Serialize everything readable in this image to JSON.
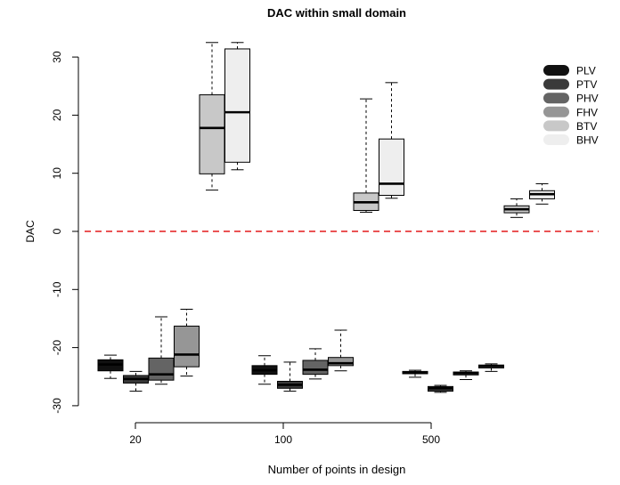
{
  "chart_data": {
    "type": "box",
    "title": "DAC within small domain",
    "xlabel": "Number of points in design",
    "ylabel": "DAC",
    "ylim": [
      -31,
      33
    ],
    "yticks": [
      -30,
      -20,
      -10,
      0,
      10,
      20,
      30
    ],
    "categories": [
      "20",
      "100",
      "500"
    ],
    "reference_line": {
      "y": 0,
      "style": "dashed",
      "color": "#e41a1c"
    },
    "legend": {
      "position": "top-right"
    },
    "series": [
      {
        "name": "PLV",
        "color": "#111111",
        "boxes": [
          {
            "category": "20",
            "whisker_low": -25.3,
            "q1": -24.0,
            "median": -22.9,
            "q3": -22.1,
            "whisker_high": -21.3
          },
          {
            "category": "100",
            "whisker_low": -26.3,
            "q1": -24.6,
            "median": -23.9,
            "q3": -23.1,
            "whisker_high": -21.4
          },
          {
            "category": "500",
            "whisker_low": -25.1,
            "q1": -24.5,
            "median": -24.3,
            "q3": -24.1,
            "whisker_high": -23.9
          }
        ]
      },
      {
        "name": "PTV",
        "color": "#3a3a3a",
        "boxes": [
          {
            "category": "20",
            "whisker_low": -27.5,
            "q1": -26.1,
            "median": -25.4,
            "q3": -24.8,
            "whisker_high": -24.1
          },
          {
            "category": "100",
            "whisker_low": -27.5,
            "q1": -27.0,
            "median": -26.4,
            "q3": -25.8,
            "whisker_high": -22.5
          },
          {
            "category": "500",
            "whisker_low": -27.7,
            "q1": -27.5,
            "median": -27.0,
            "q3": -26.7,
            "whisker_high": -26.5
          }
        ]
      },
      {
        "name": "PHV",
        "color": "#646464",
        "boxes": [
          {
            "category": "20",
            "whisker_low": -26.3,
            "q1": -25.6,
            "median": -24.6,
            "q3": -21.8,
            "whisker_high": -14.7
          },
          {
            "category": "100",
            "whisker_low": -25.4,
            "q1": -24.6,
            "median": -23.8,
            "q3": -22.2,
            "whisker_high": -20.2
          },
          {
            "category": "500",
            "whisker_low": -25.5,
            "q1": -24.7,
            "median": -24.4,
            "q3": -24.2,
            "whisker_high": -24.0
          }
        ]
      },
      {
        "name": "FHV",
        "color": "#969696",
        "boxes": [
          {
            "category": "20",
            "whisker_low": -24.9,
            "q1": -23.3,
            "median": -21.2,
            "q3": -16.3,
            "whisker_high": -13.4
          },
          {
            "category": "100",
            "whisker_low": -24.0,
            "q1": -23.1,
            "median": -22.7,
            "q3": -21.7,
            "whisker_high": -17.0
          },
          {
            "category": "500",
            "whisker_low": -24.1,
            "q1": -23.5,
            "median": -23.2,
            "q3": -23.0,
            "whisker_high": -22.8
          }
        ]
      },
      {
        "name": "BTV",
        "color": "#c8c8c8",
        "boxes": [
          {
            "category": "20",
            "whisker_low": 7.1,
            "q1": 9.9,
            "median": 17.8,
            "q3": 23.5,
            "whisker_high": 32.5
          },
          {
            "category": "100",
            "whisker_low": 3.3,
            "q1": 3.6,
            "median": 5.0,
            "q3": 6.6,
            "whisker_high": 22.8
          },
          {
            "category": "500",
            "whisker_low": 2.4,
            "q1": 3.2,
            "median": 3.8,
            "q3": 4.4,
            "whisker_high": 5.6
          }
        ]
      },
      {
        "name": "BHV",
        "color": "#eeeeee",
        "boxes": [
          {
            "category": "20",
            "whisker_low": 10.6,
            "q1": 11.9,
            "median": 20.5,
            "q3": 31.4,
            "whisker_high": 32.5
          },
          {
            "category": "100",
            "whisker_low": 5.7,
            "q1": 6.2,
            "median": 8.2,
            "q3": 15.9,
            "whisker_high": 25.6
          },
          {
            "category": "500",
            "whisker_low": 4.7,
            "q1": 5.6,
            "median": 6.4,
            "q3": 7.0,
            "whisker_high": 8.2
          }
        ]
      }
    ]
  }
}
